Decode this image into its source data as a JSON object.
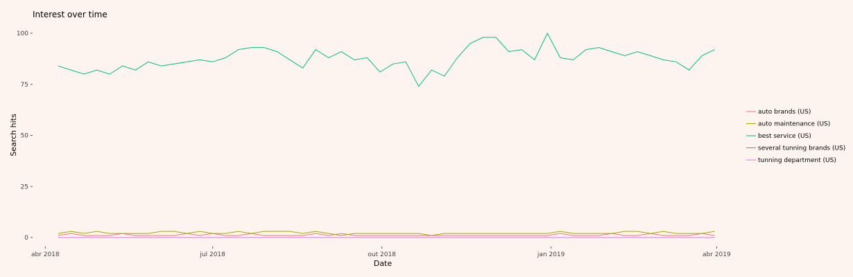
{
  "chart_data": {
    "type": "line",
    "title": "Interest over time",
    "xlabel": "Date",
    "ylabel": "Search hits",
    "ylim": [
      0,
      100
    ],
    "yticks": [
      0,
      25,
      50,
      75,
      100
    ],
    "xlim": [
      "2018-03-30",
      "2019-04-02"
    ],
    "xticks": [
      {
        "date": "2018-04-01",
        "label": "abr 2018"
      },
      {
        "date": "2018-07-01",
        "label": "jul 2018"
      },
      {
        "date": "2018-10-01",
        "label": "out 2018"
      },
      {
        "date": "2019-01-01",
        "label": "jan 2019"
      },
      {
        "date": "2019-04-01",
        "label": "abr 2019"
      }
    ],
    "grid": false,
    "legend_position": "right",
    "x": [
      "2018-04-08",
      "2018-04-15",
      "2018-04-22",
      "2018-04-29",
      "2018-05-06",
      "2018-05-13",
      "2018-05-20",
      "2018-05-27",
      "2018-06-03",
      "2018-06-10",
      "2018-06-17",
      "2018-06-24",
      "2018-07-01",
      "2018-07-08",
      "2018-07-15",
      "2018-07-22",
      "2018-07-29",
      "2018-08-05",
      "2018-08-12",
      "2018-08-19",
      "2018-08-26",
      "2018-09-02",
      "2018-09-09",
      "2018-09-16",
      "2018-09-23",
      "2018-09-30",
      "2018-10-07",
      "2018-10-14",
      "2018-10-21",
      "2018-10-28",
      "2018-11-04",
      "2018-11-11",
      "2018-11-18",
      "2018-11-25",
      "2018-12-02",
      "2018-12-09",
      "2018-12-16",
      "2018-12-23",
      "2018-12-30",
      "2019-01-06",
      "2019-01-13",
      "2019-01-20",
      "2019-01-27",
      "2019-02-03",
      "2019-02-10",
      "2019-02-17",
      "2019-02-24",
      "2019-03-03",
      "2019-03-10",
      "2019-03-17",
      "2019-03-24",
      "2019-03-31"
    ],
    "series": [
      {
        "name": "auto brands (US)",
        "color": "#F8766D",
        "values": [
          1,
          2,
          1,
          1,
          1,
          2,
          1,
          1,
          1,
          1,
          2,
          1,
          2,
          1,
          1,
          2,
          1,
          1,
          1,
          1,
          2,
          1,
          2,
          1,
          1,
          1,
          1,
          1,
          1,
          1,
          1,
          1,
          1,
          1,
          1,
          1,
          1,
          1,
          1,
          2,
          1,
          1,
          1,
          2,
          1,
          1,
          2,
          1,
          1,
          1,
          2,
          1
        ]
      },
      {
        "name": "auto maintenance (US)",
        "color": "#A3A500",
        "values": [
          2,
          3,
          2,
          3,
          2,
          2,
          2,
          2,
          3,
          3,
          2,
          3,
          2,
          2,
          3,
          2,
          3,
          3,
          3,
          2,
          3,
          2,
          1,
          2,
          2,
          2,
          2,
          2,
          2,
          1,
          2,
          2,
          2,
          2,
          2,
          2,
          2,
          2,
          2,
          3,
          2,
          2,
          2,
          2,
          3,
          3,
          2,
          3,
          2,
          2,
          2,
          3
        ]
      },
      {
        "name": "best service (US)",
        "color": "#00BF7D",
        "values": [
          84,
          82,
          80,
          82,
          80,
          84,
          82,
          86,
          84,
          85,
          86,
          87,
          86,
          88,
          92,
          93,
          93,
          91,
          87,
          83,
          92,
          88,
          91,
          87,
          88,
          81,
          85,
          86,
          74,
          82,
          79,
          88,
          95,
          98,
          98,
          91,
          92,
          87,
          100,
          88,
          87,
          92,
          93,
          91,
          89,
          91,
          89,
          87,
          86,
          82,
          89,
          92
        ]
      },
      {
        "name": "several tunning brands (US)",
        "color": "#00B0F6",
        "values": [
          0,
          0,
          0,
          0,
          0,
          0,
          0,
          0,
          0,
          0,
          0,
          0,
          0,
          0,
          0,
          0,
          0,
          0,
          0,
          0,
          0,
          0,
          0,
          0,
          0,
          0,
          0,
          0,
          0,
          0,
          0,
          0,
          0,
          0,
          0,
          0,
          0,
          0,
          0,
          0,
          0,
          0,
          0,
          0,
          0,
          0,
          0,
          0,
          0,
          0,
          0,
          0
        ]
      },
      {
        "name": "tunning department (US)",
        "color": "#E76BF3",
        "values": [
          0,
          0,
          0,
          0,
          0,
          0,
          0,
          0,
          0,
          0,
          0,
          0,
          0,
          0,
          0,
          0,
          0,
          0,
          0,
          0,
          0,
          0,
          0,
          0,
          0,
          0,
          0,
          0,
          0,
          0,
          0,
          0,
          0,
          0,
          0,
          0,
          0,
          0,
          0,
          0,
          0,
          0,
          0,
          0,
          0,
          0,
          0,
          0,
          0,
          0,
          0,
          0
        ]
      }
    ]
  }
}
